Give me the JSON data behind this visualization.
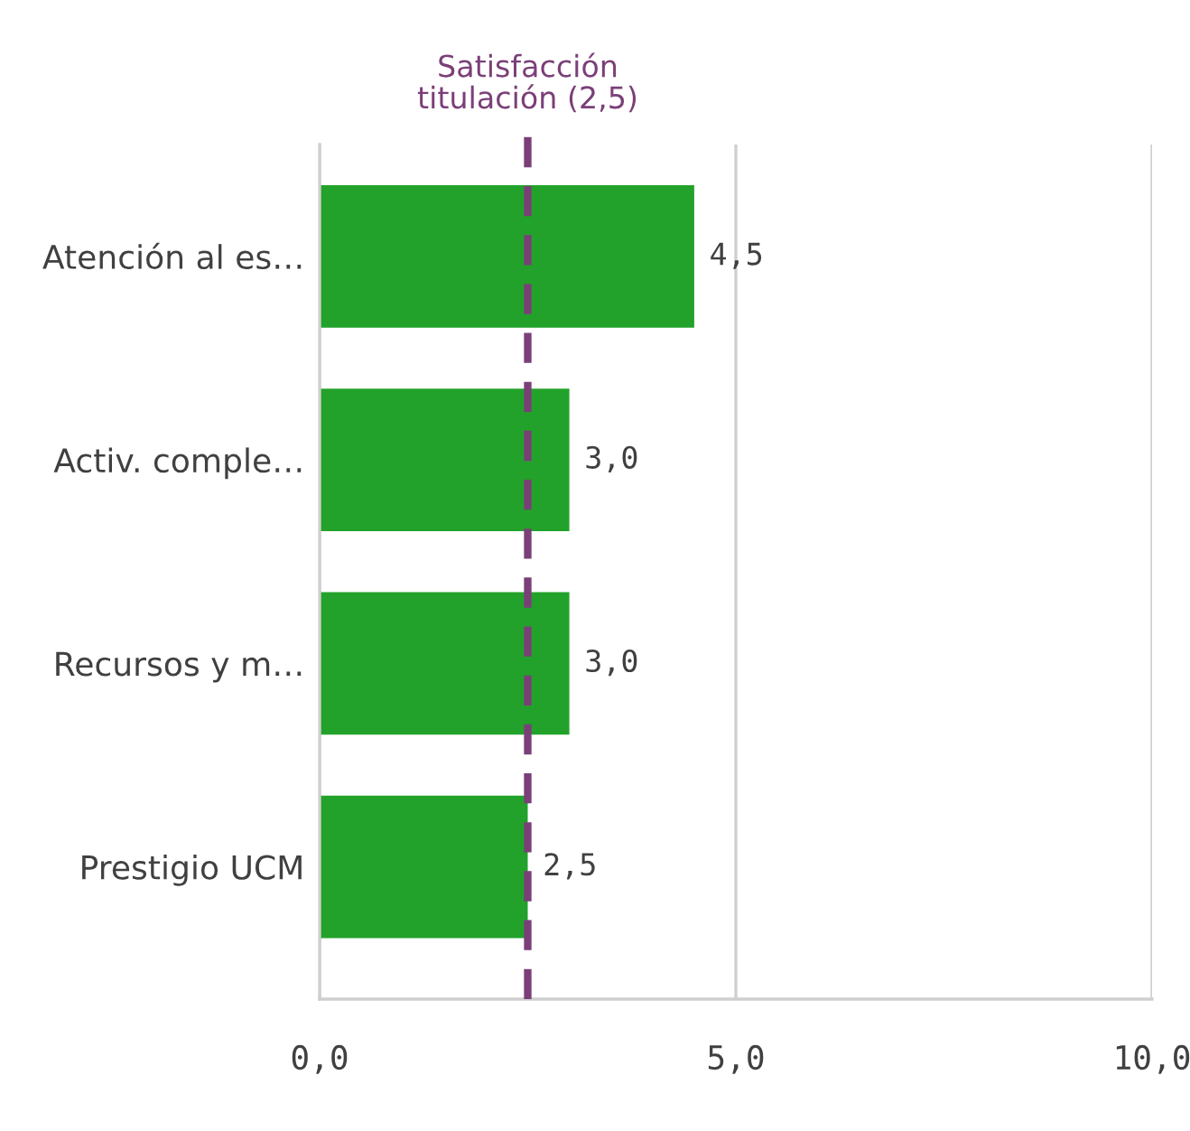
{
  "chart_data": {
    "type": "bar",
    "orientation": "horizontal",
    "categories": [
      "Atención al es…",
      "Activ. comple…",
      "Recursos y m…",
      "Prestigio UCM"
    ],
    "values": [
      4.5,
      3.0,
      3.0,
      2.5
    ],
    "value_labels": [
      "4,5",
      "3,0",
      "3,0",
      "2,5"
    ],
    "color": "#22a22a",
    "xlim": [
      0,
      10
    ],
    "xticks": [
      {
        "value": 0,
        "label": "0,0"
      },
      {
        "value": 5,
        "label": "5,0"
      },
      {
        "value": 10,
        "label": "10,0"
      }
    ],
    "grid": "x",
    "ref_lines": [
      {
        "axis": "x",
        "value": 2.5,
        "label": "Satisfacción\ntitulación (2,5)",
        "color": "#7b3f78",
        "line_style": "dashed"
      }
    ]
  }
}
